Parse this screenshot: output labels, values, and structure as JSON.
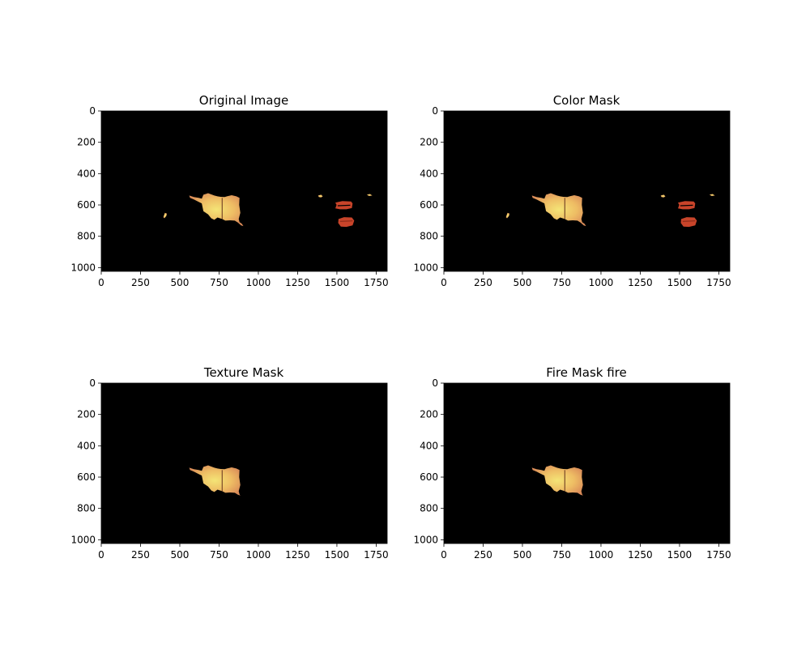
{
  "figure": {
    "background": "#ffffff",
    "layout": "2x2 grid of image panels"
  },
  "chart_data": [
    {
      "type": "heatmap",
      "title": "Original Image",
      "xlim": [
        0,
        1820
      ],
      "ylim": [
        1024,
        0
      ],
      "xticks": [
        0,
        250,
        500,
        750,
        1000,
        1250,
        1500,
        1750
      ],
      "yticks": [
        0,
        200,
        400,
        600,
        800,
        1000
      ],
      "background_color": "#000000",
      "regions": [
        {
          "kind": "fire",
          "label": "main-fire",
          "points": [
            [
              560,
              540
            ],
            [
              590,
              550
            ],
            [
              620,
              555
            ],
            [
              640,
              560
            ],
            [
              650,
              535
            ],
            [
              680,
              525
            ],
            [
              720,
              540
            ],
            [
              740,
              545
            ],
            [
              760,
              548
            ],
            [
              785,
              550
            ],
            [
              800,
              545
            ],
            [
              830,
              538
            ],
            [
              860,
              545
            ],
            [
              880,
              555
            ],
            [
              878,
              600
            ],
            [
              885,
              650
            ],
            [
              875,
              690
            ],
            [
              880,
              710
            ],
            [
              895,
              720
            ],
            [
              905,
              735
            ],
            [
              890,
              730
            ],
            [
              870,
              712
            ],
            [
              850,
              700
            ],
            [
              820,
              698
            ],
            [
              790,
              700
            ],
            [
              770,
              690
            ],
            [
              740,
              680
            ],
            [
              720,
              695
            ],
            [
              700,
              685
            ],
            [
              680,
              660
            ],
            [
              650,
              640
            ],
            [
              640,
              590
            ],
            [
              610,
              575
            ],
            [
              590,
              565
            ],
            [
              565,
              555
            ]
          ]
        },
        {
          "kind": "fire",
          "label": "small-left-spot",
          "points": [
            [
              405,
              650
            ],
            [
              418,
              655
            ],
            [
              414,
              670
            ],
            [
              402,
              685
            ],
            [
              395,
              678
            ]
          ]
        },
        {
          "kind": "fire",
          "label": "small-right-spot-1",
          "points": [
            [
              1380,
              540
            ],
            [
              1400,
              535
            ],
            [
              1410,
              545
            ],
            [
              1400,
              552
            ],
            [
              1385,
              550
            ]
          ]
        },
        {
          "kind": "fire",
          "label": "small-right-spot-2",
          "points": [
            [
              1690,
              535
            ],
            [
              1710,
              530
            ],
            [
              1725,
              540
            ],
            [
              1705,
              543
            ]
          ]
        },
        {
          "kind": "red",
          "label": "red-object-upper",
          "points": [
            [
              1490,
              585
            ],
            [
              1535,
              575
            ],
            [
              1590,
              578
            ],
            [
              1600,
              590
            ],
            [
              1595,
              620
            ],
            [
              1560,
              628
            ],
            [
              1520,
              628
            ],
            [
              1490,
              622
            ],
            [
              1498,
              600
            ]
          ]
        },
        {
          "kind": "red",
          "label": "red-object-lower",
          "points": [
            [
              1510,
              690
            ],
            [
              1545,
              678
            ],
            [
              1595,
              680
            ],
            [
              1610,
              700
            ],
            [
              1600,
              730
            ],
            [
              1560,
              740
            ],
            [
              1525,
              738
            ],
            [
              1508,
              715
            ]
          ]
        }
      ]
    },
    {
      "type": "heatmap",
      "title": "Color Mask",
      "xlim": [
        0,
        1820
      ],
      "ylim": [
        1024,
        0
      ],
      "xticks": [
        0,
        250,
        500,
        750,
        1000,
        1250,
        1500,
        1750
      ],
      "yticks": [
        0,
        200,
        400,
        600,
        800,
        1000
      ],
      "background_color": "#000000",
      "regions": [
        {
          "kind": "fire",
          "label": "main-fire",
          "points": [
            [
              560,
              540
            ],
            [
              590,
              550
            ],
            [
              620,
              555
            ],
            [
              640,
              560
            ],
            [
              650,
              535
            ],
            [
              680,
              525
            ],
            [
              720,
              540
            ],
            [
              740,
              545
            ],
            [
              760,
              548
            ],
            [
              785,
              550
            ],
            [
              800,
              545
            ],
            [
              830,
              538
            ],
            [
              860,
              545
            ],
            [
              880,
              555
            ],
            [
              878,
              600
            ],
            [
              885,
              650
            ],
            [
              875,
              690
            ],
            [
              880,
              710
            ],
            [
              895,
              720
            ],
            [
              905,
              735
            ],
            [
              890,
              730
            ],
            [
              870,
              712
            ],
            [
              850,
              700
            ],
            [
              820,
              698
            ],
            [
              790,
              700
            ],
            [
              770,
              690
            ],
            [
              740,
              680
            ],
            [
              720,
              695
            ],
            [
              700,
              685
            ],
            [
              680,
              660
            ],
            [
              650,
              640
            ],
            [
              640,
              590
            ],
            [
              610,
              575
            ],
            [
              590,
              565
            ],
            [
              565,
              555
            ]
          ]
        },
        {
          "kind": "fire",
          "label": "small-left-spot",
          "points": [
            [
              405,
              650
            ],
            [
              418,
              655
            ],
            [
              414,
              670
            ],
            [
              402,
              685
            ],
            [
              395,
              678
            ]
          ]
        },
        {
          "kind": "fire",
          "label": "small-right-spot-1",
          "points": [
            [
              1380,
              540
            ],
            [
              1400,
              535
            ],
            [
              1410,
              545
            ],
            [
              1400,
              552
            ],
            [
              1385,
              550
            ]
          ]
        },
        {
          "kind": "fire",
          "label": "small-right-spot-2",
          "points": [
            [
              1690,
              535
            ],
            [
              1710,
              530
            ],
            [
              1725,
              540
            ],
            [
              1705,
              543
            ]
          ]
        },
        {
          "kind": "red",
          "label": "red-object-upper",
          "points": [
            [
              1490,
              585
            ],
            [
              1535,
              575
            ],
            [
              1590,
              578
            ],
            [
              1600,
              590
            ],
            [
              1595,
              620
            ],
            [
              1560,
              628
            ],
            [
              1520,
              628
            ],
            [
              1490,
              622
            ],
            [
              1498,
              600
            ]
          ]
        },
        {
          "kind": "red",
          "label": "red-object-lower",
          "points": [
            [
              1510,
              690
            ],
            [
              1545,
              678
            ],
            [
              1595,
              680
            ],
            [
              1610,
              700
            ],
            [
              1600,
              730
            ],
            [
              1560,
              740
            ],
            [
              1525,
              738
            ],
            [
              1508,
              715
            ]
          ]
        }
      ]
    },
    {
      "type": "heatmap",
      "title": "Texture Mask",
      "xlim": [
        0,
        1820
      ],
      "ylim": [
        1024,
        0
      ],
      "xticks": [
        0,
        250,
        500,
        750,
        1000,
        1250,
        1500,
        1750
      ],
      "yticks": [
        0,
        200,
        400,
        600,
        800,
        1000
      ],
      "background_color": "#000000",
      "regions": [
        {
          "kind": "fire",
          "label": "main-fire",
          "points": [
            [
              560,
              540
            ],
            [
              590,
              550
            ],
            [
              620,
              555
            ],
            [
              640,
              560
            ],
            [
              650,
              535
            ],
            [
              680,
              525
            ],
            [
              720,
              540
            ],
            [
              740,
              545
            ],
            [
              760,
              548
            ],
            [
              785,
              550
            ],
            [
              800,
              545
            ],
            [
              830,
              538
            ],
            [
              860,
              545
            ],
            [
              880,
              555
            ],
            [
              878,
              600
            ],
            [
              885,
              650
            ],
            [
              875,
              690
            ],
            [
              880,
              710
            ],
            [
              885,
              718
            ],
            [
              870,
              712
            ],
            [
              850,
              700
            ],
            [
              820,
              698
            ],
            [
              790,
              700
            ],
            [
              770,
              690
            ],
            [
              740,
              680
            ],
            [
              720,
              695
            ],
            [
              700,
              685
            ],
            [
              680,
              660
            ],
            [
              650,
              640
            ],
            [
              640,
              590
            ],
            [
              610,
              575
            ],
            [
              590,
              565
            ],
            [
              565,
              555
            ]
          ]
        }
      ]
    },
    {
      "type": "heatmap",
      "title": "Fire Mask fire",
      "xlim": [
        0,
        1820
      ],
      "ylim": [
        1024,
        0
      ],
      "xticks": [
        0,
        250,
        500,
        750,
        1000,
        1250,
        1500,
        1750
      ],
      "yticks": [
        0,
        200,
        400,
        600,
        800,
        1000
      ],
      "background_color": "#000000",
      "regions": [
        {
          "kind": "fire",
          "label": "main-fire",
          "points": [
            [
              560,
              540
            ],
            [
              590,
              550
            ],
            [
              620,
              555
            ],
            [
              640,
              560
            ],
            [
              650,
              535
            ],
            [
              680,
              525
            ],
            [
              720,
              540
            ],
            [
              740,
              545
            ],
            [
              760,
              548
            ],
            [
              785,
              550
            ],
            [
              800,
              545
            ],
            [
              830,
              538
            ],
            [
              860,
              545
            ],
            [
              880,
              555
            ],
            [
              878,
              600
            ],
            [
              885,
              650
            ],
            [
              875,
              690
            ],
            [
              880,
              710
            ],
            [
              885,
              718
            ],
            [
              870,
              712
            ],
            [
              850,
              700
            ],
            [
              820,
              698
            ],
            [
              790,
              700
            ],
            [
              770,
              690
            ],
            [
              740,
              680
            ],
            [
              720,
              695
            ],
            [
              700,
              685
            ],
            [
              680,
              660
            ],
            [
              650,
              640
            ],
            [
              640,
              590
            ],
            [
              610,
              575
            ],
            [
              590,
              565
            ],
            [
              565,
              555
            ]
          ]
        }
      ]
    }
  ],
  "colors": {
    "fire_fill": "#e8a060",
    "fire_core": "#f3e070",
    "red_fill": "#c8442a",
    "axis": "#000000",
    "image_background": "#000000"
  }
}
